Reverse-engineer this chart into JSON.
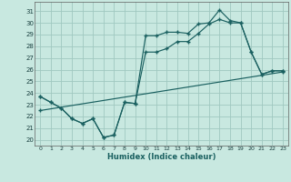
{
  "xlabel": "Humidex (Indice chaleur)",
  "ylabel": "",
  "bg_color": "#c8e8e0",
  "grid_color": "#a0c8c0",
  "line_color": "#1a6060",
  "xlim": [
    -0.5,
    23.5
  ],
  "ylim": [
    19.5,
    31.8
  ],
  "xticks": [
    0,
    1,
    2,
    3,
    4,
    5,
    6,
    7,
    8,
    9,
    10,
    11,
    12,
    13,
    14,
    15,
    16,
    17,
    18,
    19,
    20,
    21,
    22,
    23
  ],
  "yticks": [
    20,
    21,
    22,
    23,
    24,
    25,
    26,
    27,
    28,
    29,
    30,
    31
  ],
  "line1_x": [
    0,
    1,
    2,
    3,
    4,
    5,
    6,
    7,
    8,
    9,
    10,
    11,
    12,
    13,
    14,
    15,
    16,
    17,
    18,
    19,
    20,
    21,
    22,
    23
  ],
  "line1_y": [
    23.7,
    23.2,
    22.7,
    21.8,
    21.4,
    21.8,
    20.2,
    20.4,
    23.2,
    23.1,
    28.9,
    28.9,
    29.2,
    29.2,
    29.1,
    29.9,
    30.0,
    31.1,
    30.2,
    30.0,
    27.5,
    25.6,
    25.9,
    25.9
  ],
  "line2_x": [
    0,
    1,
    2,
    3,
    4,
    5,
    6,
    7,
    8,
    9,
    10,
    11,
    12,
    13,
    14,
    15,
    16,
    17,
    18,
    19,
    20,
    21,
    22,
    23
  ],
  "line2_y": [
    23.7,
    23.2,
    22.7,
    21.8,
    21.4,
    21.8,
    20.2,
    20.4,
    23.2,
    23.1,
    27.5,
    27.5,
    27.8,
    28.4,
    28.4,
    29.1,
    29.9,
    30.3,
    30.0,
    30.0,
    27.5,
    25.6,
    25.9,
    25.9
  ],
  "line3_x": [
    0,
    23
  ],
  "line3_y": [
    22.5,
    25.8
  ]
}
